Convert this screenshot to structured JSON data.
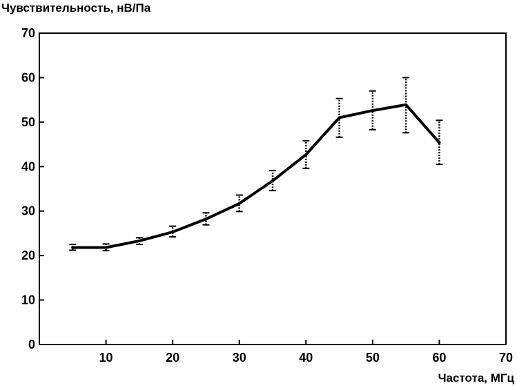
{
  "chart_data": {
    "type": "line",
    "title": "",
    "ylabel": "Чувствительность, нВ/Па",
    "xlabel": "Частота, МГц",
    "xlim": [
      0,
      70
    ],
    "ylim": [
      0,
      70
    ],
    "x_ticks": [
      10,
      20,
      30,
      40,
      50,
      60,
      70
    ],
    "y_ticks": [
      0,
      10,
      20,
      30,
      40,
      50,
      60,
      70
    ],
    "x_tick_labels": [
      "10",
      "20",
      "30",
      "40",
      "50",
      "60",
      "70"
    ],
    "y_tick_labels": [
      "0",
      "10",
      "20",
      "30",
      "40",
      "50",
      "60",
      "70"
    ],
    "grid": false,
    "series": [
      {
        "x": [
          5,
          10,
          15,
          20,
          25,
          30,
          35,
          40,
          45,
          50,
          55,
          60
        ],
        "y": [
          21.8,
          21.8,
          23.3,
          25.3,
          28.2,
          31.7,
          36.8,
          42.7,
          51.0,
          52.6,
          53.9,
          45.4
        ],
        "y_low": [
          21.2,
          21.1,
          22.5,
          24.2,
          26.9,
          29.9,
          34.6,
          39.6,
          46.6,
          48.3,
          47.6,
          40.5
        ],
        "y_high": [
          22.5,
          22.6,
          24.0,
          26.6,
          29.6,
          33.6,
          39.1,
          45.8,
          55.3,
          57.0,
          60.0,
          50.4
        ]
      }
    ]
  }
}
